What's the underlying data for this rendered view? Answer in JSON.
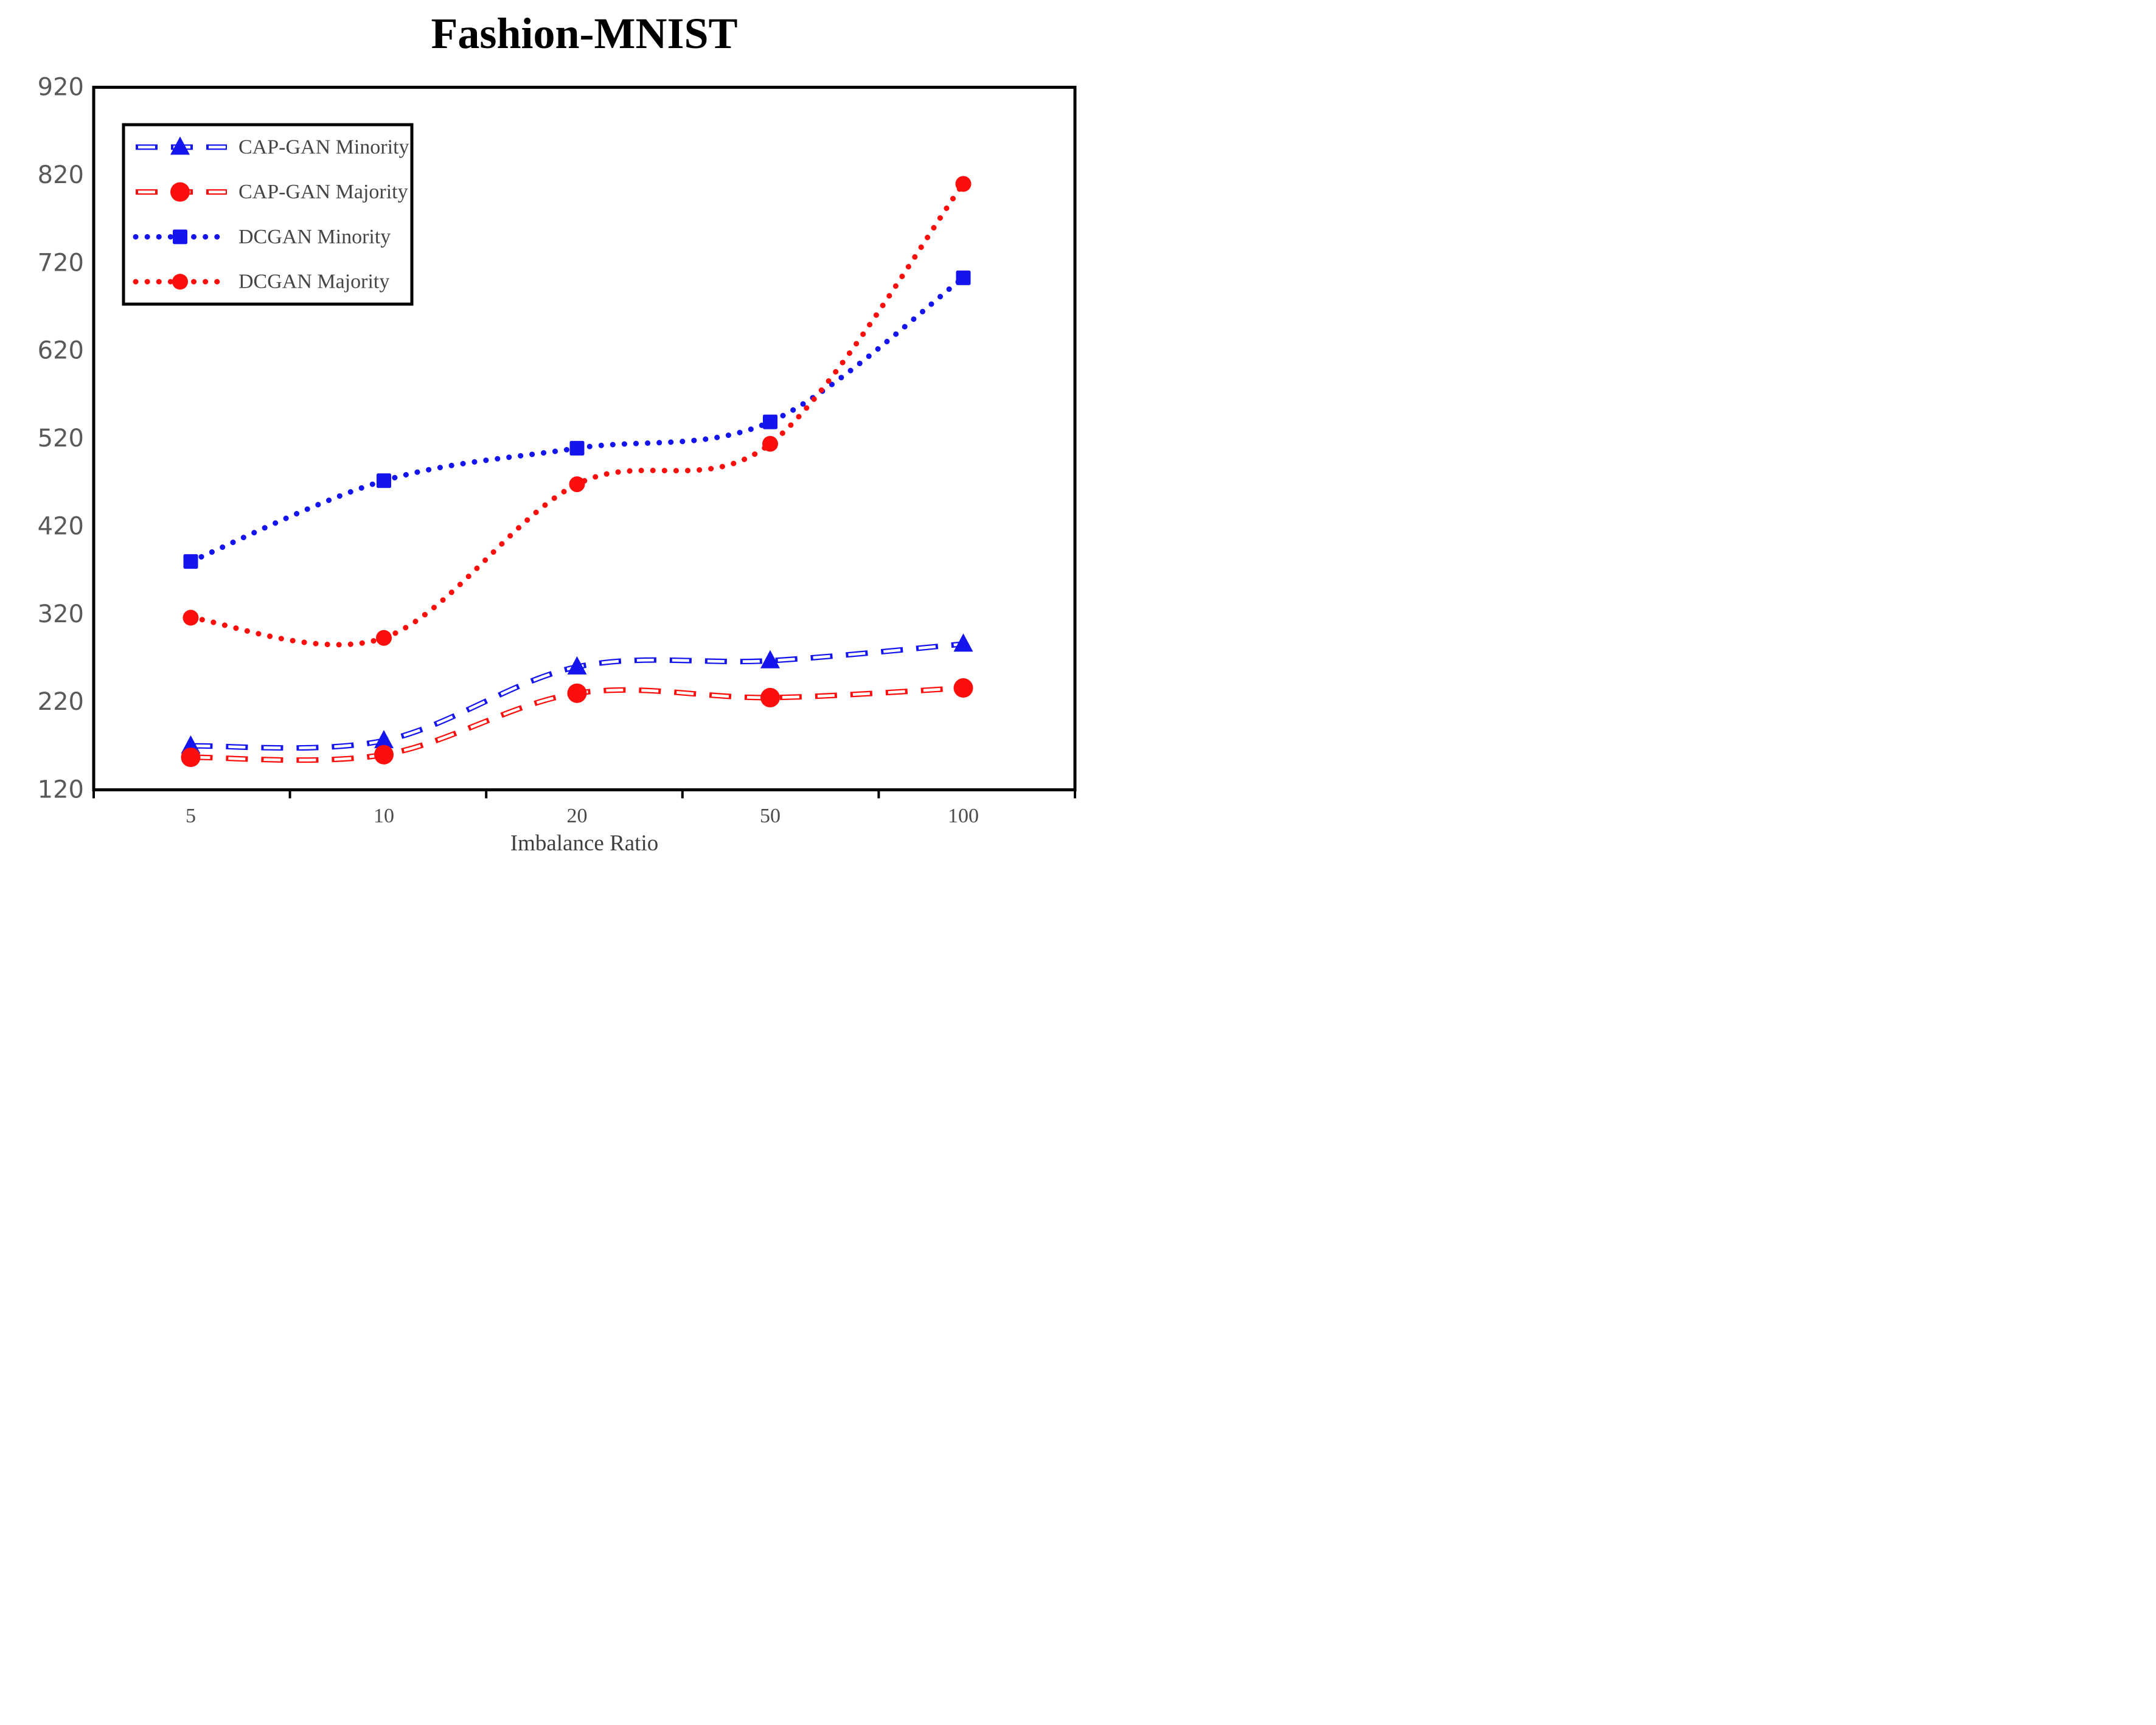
{
  "title": "Fashion-MNIST",
  "colors": {
    "blue": "#1414ef",
    "red": "#fb0e0c",
    "axis": "#000000",
    "tick_text": "#595959"
  },
  "chart_data": {
    "type": "line",
    "title": "Fashion-MNIST",
    "xlabel": "Imbalance Ratio",
    "ylabel": "",
    "categories": [
      "5",
      "10",
      "20",
      "50",
      "100"
    ],
    "y_ticks": [
      120,
      220,
      320,
      420,
      520,
      620,
      720,
      820,
      920
    ],
    "ylim": [
      120,
      920
    ],
    "grid": false,
    "legend_position": "upper-left-inside",
    "legend_entries": [
      "CAP-GAN Minority",
      "CAP-GAN Majority",
      "DCGAN Minority",
      "DCGAN Majority"
    ],
    "series": [
      {
        "name": "DCGAN Minority",
        "color": "#1414ef",
        "line_style": "dotted",
        "marker": "square",
        "values": [
          380,
          472,
          509,
          539,
          703
        ]
      },
      {
        "name": "DCGAN Majority",
        "color": "#fb0e0c",
        "line_style": "dotted",
        "marker": "circle",
        "values": [
          316,
          293,
          468,
          514,
          810
        ]
      },
      {
        "name": "CAP-GAN Minority",
        "color": "#1414ef",
        "line_style": "dashed",
        "marker": "triangle",
        "values": [
          170,
          176,
          260,
          267,
          286
        ]
      },
      {
        "name": "CAP-GAN Majority",
        "color": "#fb0e0c",
        "line_style": "dashed",
        "marker": "circle",
        "values": [
          157,
          160,
          230,
          225,
          236
        ]
      }
    ],
    "legend_order": [
      "CAP-GAN Minority",
      "CAP-GAN Majority",
      "DCGAN Minority",
      "DCGAN Majority"
    ]
  }
}
